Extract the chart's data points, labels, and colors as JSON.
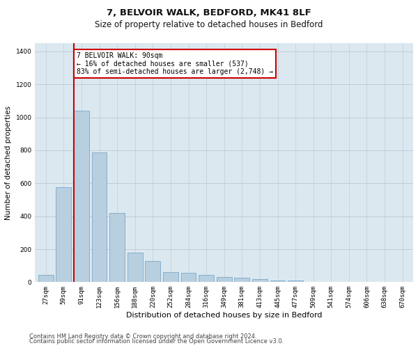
{
  "title": "7, BELVOIR WALK, BEDFORD, MK41 8LF",
  "subtitle": "Size of property relative to detached houses in Bedford",
  "xlabel": "Distribution of detached houses by size in Bedford",
  "ylabel": "Number of detached properties",
  "footer1": "Contains HM Land Registry data © Crown copyright and database right 2024.",
  "footer2": "Contains public sector information licensed under the Open Government Licence v3.0.",
  "categories": [
    "27sqm",
    "59sqm",
    "91sqm",
    "123sqm",
    "156sqm",
    "188sqm",
    "220sqm",
    "252sqm",
    "284sqm",
    "316sqm",
    "349sqm",
    "381sqm",
    "413sqm",
    "445sqm",
    "477sqm",
    "509sqm",
    "541sqm",
    "574sqm",
    "606sqm",
    "638sqm",
    "670sqm"
  ],
  "values": [
    45,
    575,
    1040,
    785,
    420,
    180,
    130,
    60,
    55,
    45,
    30,
    25,
    20,
    12,
    10,
    0,
    0,
    0,
    0,
    0,
    0
  ],
  "bar_color": "#b8cfe0",
  "bar_edge_color": "#7aa8c8",
  "red_line_index": 2,
  "red_line_color": "#cc0000",
  "annotation_text": "7 BELVOIR WALK: 90sqm\n← 16% of detached houses are smaller (537)\n83% of semi-detached houses are larger (2,748) →",
  "annotation_box_color": "#ffffff",
  "annotation_box_edge": "#cc0000",
  "ylim": [
    0,
    1450
  ],
  "yticks": [
    0,
    200,
    400,
    600,
    800,
    1000,
    1200,
    1400
  ],
  "plot_bg_color": "#dce8f0",
  "grid_color": "#c0ccd8",
  "title_fontsize": 9.5,
  "subtitle_fontsize": 8.5,
  "ylabel_fontsize": 7.5,
  "xlabel_fontsize": 8,
  "tick_fontsize": 6.5,
  "annot_fontsize": 7,
  "footer_fontsize": 6
}
